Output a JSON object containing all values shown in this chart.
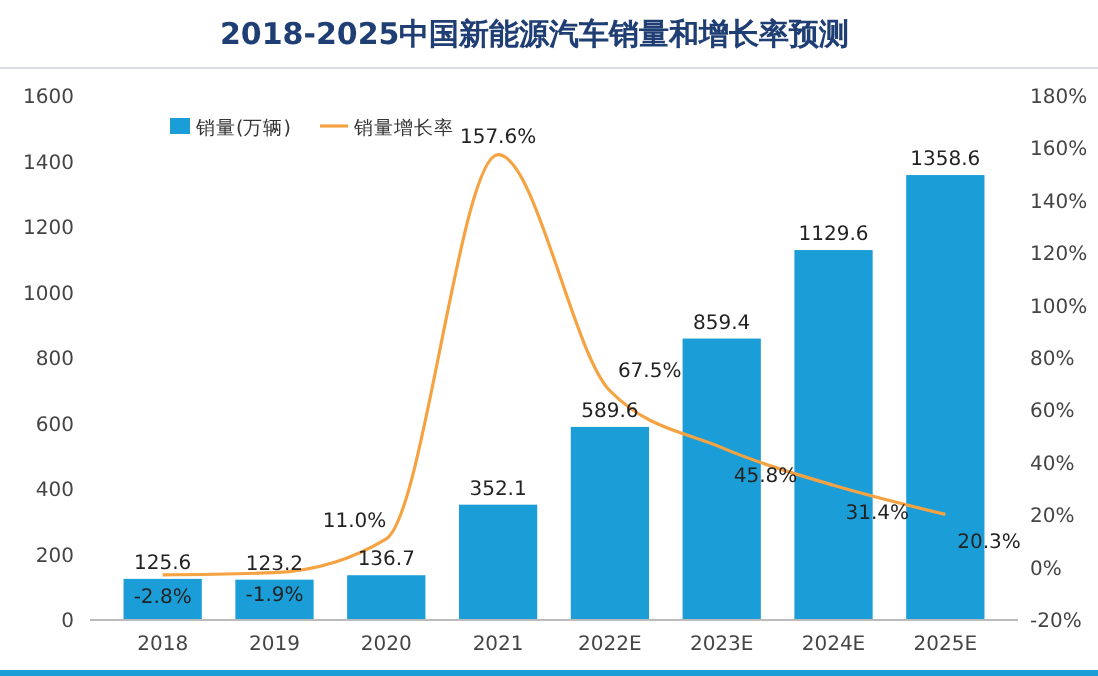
{
  "chart_data": {
    "type": "bar",
    "title": "2018-2025中国新能源汽车销量和增长率预测",
    "categories": [
      "2018",
      "2019",
      "2020",
      "2021",
      "2022E",
      "2023E",
      "2024E",
      "2025E"
    ],
    "series": [
      {
        "name": "销量(万辆)",
        "color": "#1b9ed8",
        "values": [
          125.6,
          123.2,
          136.7,
          352.1,
          589.6,
          859.4,
          1129.6,
          1358.6
        ],
        "value_labels": [
          "125.6",
          "123.2",
          "136.7",
          "352.1",
          "589.6",
          "859.4",
          "1129.6",
          "1358.6"
        ]
      },
      {
        "name": "销量增长率",
        "type": "line",
        "axis": "y2",
        "color": "#f5a342",
        "values": [
          -2.8,
          -1.9,
          11.0,
          157.6,
          67.5,
          45.8,
          31.4,
          20.3
        ],
        "value_labels": [
          "-2.8%",
          "-1.9%",
          "11.0%",
          "157.6%",
          "67.5%",
          "45.8%",
          "31.4%",
          "20.3%"
        ]
      }
    ],
    "ylim": [
      0,
      1600
    ],
    "yticks": [
      0,
      200,
      400,
      600,
      800,
      1000,
      1200,
      1400,
      1600
    ],
    "y2lim": [
      -20,
      180
    ],
    "y2ticks": [
      {
        "value": -20,
        "label": "-20%"
      },
      {
        "value": 0,
        "label": "0%"
      },
      {
        "value": 20,
        "label": "20%"
      },
      {
        "value": 40,
        "label": "40%"
      },
      {
        "value": 60,
        "label": "60%"
      },
      {
        "value": 80,
        "label": "80%"
      },
      {
        "value": 100,
        "label": "100%"
      },
      {
        "value": 120,
        "label": "120%"
      },
      {
        "value": 140,
        "label": "140%"
      },
      {
        "value": 160,
        "label": "160%"
      },
      {
        "value": 180,
        "label": "180%"
      }
    ],
    "legend": "top left",
    "marker": "none",
    "line_style": "solid",
    "grid": false
  }
}
